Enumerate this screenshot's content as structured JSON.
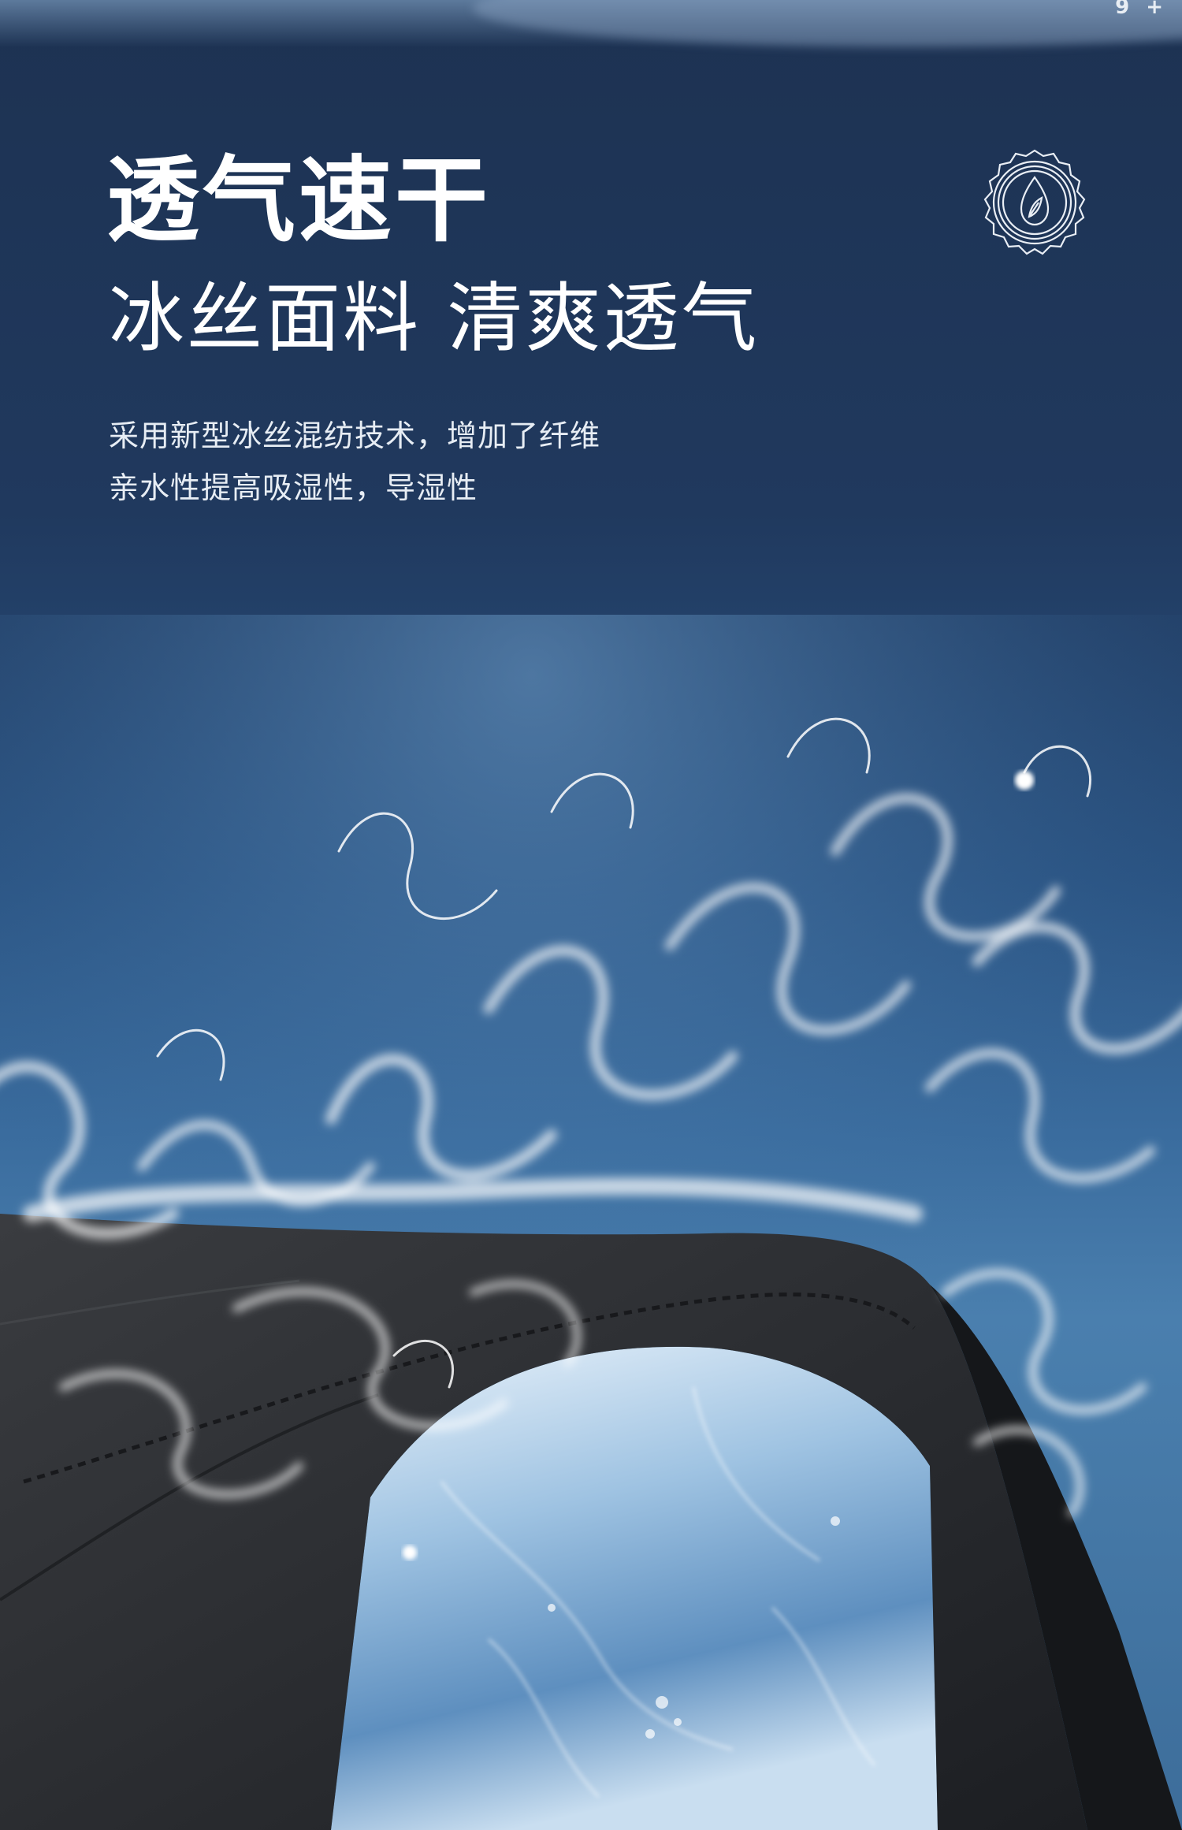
{
  "corner_text": "9 +",
  "heading": {
    "title": "透气速干",
    "subtitle": "冰丝面料 清爽透气"
  },
  "description": {
    "lines": [
      "采用新型冰丝混纺技术，增加了纤维",
      "亲水性提高吸湿性，导湿性"
    ]
  },
  "badge_icon": "leaf-droplet-seal-icon",
  "colors": {
    "background_top": "#1d3252",
    "background_mid": "#3a6c9e",
    "text": "#ffffff",
    "fabric": "#2a2c30"
  }
}
